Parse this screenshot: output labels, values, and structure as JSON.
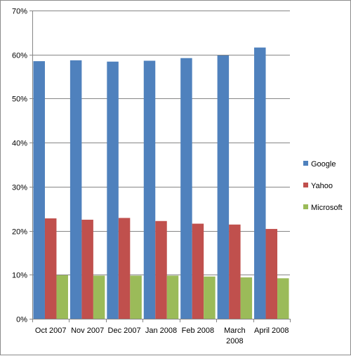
{
  "chart_data": {
    "type": "bar",
    "title": "",
    "xlabel": "",
    "ylabel": "",
    "categories": [
      "Oct 2007",
      "Nov 2007",
      "Dec 2007",
      "Jan 2008",
      "Feb 2008",
      "March 2008",
      "April 2008"
    ],
    "category_lines": [
      [
        "Oct 2007"
      ],
      [
        "Nov 2007"
      ],
      [
        "Dec 2007"
      ],
      [
        "Jan 2008"
      ],
      [
        "Feb 2008"
      ],
      [
        "March",
        "2008"
      ],
      [
        "April 2008"
      ]
    ],
    "ylim": [
      0,
      70
    ],
    "yticks": [
      0,
      10,
      20,
      30,
      40,
      50,
      60,
      70
    ],
    "ytick_labels": [
      "0%",
      "10%",
      "20%",
      "30%",
      "40%",
      "50%",
      "60%",
      "70%"
    ],
    "grid": true,
    "legend_position": "right",
    "series": [
      {
        "name": "Google",
        "color": "#4f81bd",
        "values": [
          58.5,
          58.7,
          58.4,
          58.6,
          59.2,
          59.8,
          61.6
        ]
      },
      {
        "name": "Yahoo",
        "color": "#c0504d",
        "values": [
          22.8,
          22.5,
          22.9,
          22.2,
          21.6,
          21.4,
          20.4
        ]
      },
      {
        "name": "Microsoft",
        "color": "#9bbb59",
        "values": [
          9.9,
          9.8,
          9.8,
          9.8,
          9.6,
          9.4,
          9.2
        ]
      }
    ]
  }
}
